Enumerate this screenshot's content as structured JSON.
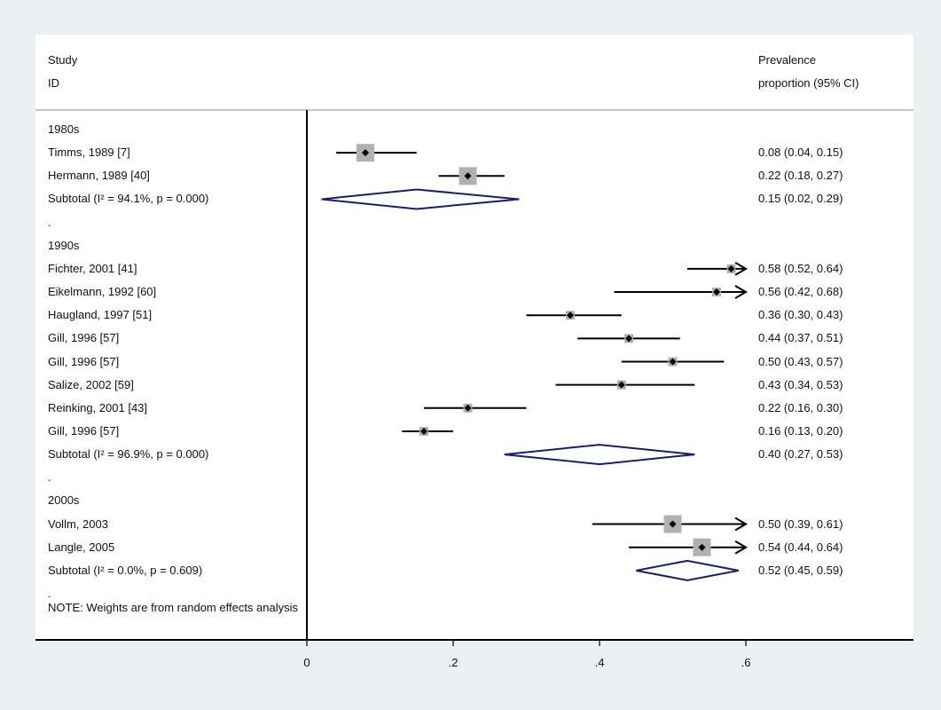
{
  "header": {
    "left_line1": "Study",
    "left_line2": "ID",
    "right_line1": "Prevalence",
    "right_line2": "proportion (95% CI)"
  },
  "note": "NOTE: Weights are from random effects analysis",
  "colors": {
    "background": "#e9f0ef",
    "panel": "#ffffff",
    "diamond": "#1a1f6b",
    "weight_box": "#b0b0b0",
    "separator": "#c8c8c8"
  },
  "chart_data": {
    "type": "forest",
    "xlim": [
      0,
      0.6
    ],
    "xticks": [
      0,
      0.2,
      0.4,
      0.6
    ],
    "xtick_labels": [
      "0",
      ".2",
      ".4",
      ".6"
    ],
    "rows": [
      {
        "kind": "group",
        "label": "1980s"
      },
      {
        "kind": "study",
        "label": "Timms, 1989 [7]",
        "est": 0.08,
        "lo": 0.04,
        "hi": 0.15,
        "text": "0.08 (0.04, 0.15)",
        "weight": 1.0
      },
      {
        "kind": "study",
        "label": "Hermann, 1989 [40]",
        "est": 0.22,
        "lo": 0.18,
        "hi": 0.27,
        "text": "0.22 (0.18, 0.27)",
        "weight": 1.0
      },
      {
        "kind": "subtotal",
        "label": "Subtotal",
        "stat": "(I² = 94.1%, p = 0.000)",
        "est": 0.15,
        "lo": 0.02,
        "hi": 0.29,
        "text": "0.15 (0.02, 0.29)"
      },
      {
        "kind": "spacer",
        "label": "."
      },
      {
        "kind": "group",
        "label": "1990s"
      },
      {
        "kind": "study",
        "label": "Fichter, 2001 [41]",
        "est": 0.58,
        "lo": 0.52,
        "hi": 0.64,
        "text": "0.58 (0.52, 0.64)",
        "weight": 0.4
      },
      {
        "kind": "study",
        "label": "Eikelmann, 1992 [60]",
        "est": 0.56,
        "lo": 0.42,
        "hi": 0.68,
        "text": "0.56 (0.42, 0.68)",
        "weight": 0.4
      },
      {
        "kind": "study",
        "label": "Haugland, 1997 [51]",
        "est": 0.36,
        "lo": 0.3,
        "hi": 0.43,
        "text": "0.36 (0.30, 0.43)",
        "weight": 0.4
      },
      {
        "kind": "study",
        "label": "Gill, 1996 [57]",
        "est": 0.44,
        "lo": 0.37,
        "hi": 0.51,
        "text": "0.44 (0.37, 0.51)",
        "weight": 0.4
      },
      {
        "kind": "study",
        "label": "Gill, 1996 [57]",
        "est": 0.5,
        "lo": 0.43,
        "hi": 0.57,
        "text": "0.50 (0.43, 0.57)",
        "weight": 0.4
      },
      {
        "kind": "study",
        "label": "Salize, 2002 [59]",
        "est": 0.43,
        "lo": 0.34,
        "hi": 0.53,
        "text": "0.43 (0.34, 0.53)",
        "weight": 0.4
      },
      {
        "kind": "study",
        "label": "Reinking, 2001 [43]",
        "est": 0.22,
        "lo": 0.16,
        "hi": 0.3,
        "text": "0.22 (0.16, 0.30)",
        "weight": 0.4
      },
      {
        "kind": "study",
        "label": "Gill, 1996 [57]",
        "est": 0.16,
        "lo": 0.13,
        "hi": 0.2,
        "text": "0.16 (0.13, 0.20)",
        "weight": 0.4
      },
      {
        "kind": "subtotal",
        "label": "Subtotal",
        "stat": "(I² = 96.9%, p = 0.000)",
        "est": 0.4,
        "lo": 0.27,
        "hi": 0.53,
        "text": "0.40 (0.27, 0.53)"
      },
      {
        "kind": "spacer",
        "label": "."
      },
      {
        "kind": "group",
        "label": "2000s"
      },
      {
        "kind": "study",
        "label": "Vollm, 2003",
        "est": 0.5,
        "lo": 0.39,
        "hi": 0.61,
        "text": "0.50 (0.39, 0.61)",
        "weight": 1.0
      },
      {
        "kind": "study",
        "label": "Langle, 2005",
        "est": 0.54,
        "lo": 0.44,
        "hi": 0.64,
        "text": "0.54 (0.44, 0.64)",
        "weight": 1.0
      },
      {
        "kind": "subtotal",
        "label": "Subtotal",
        "stat": "(I² = 0.0%, p = 0.609)",
        "est": 0.52,
        "lo": 0.45,
        "hi": 0.59,
        "text": "0.52 (0.45, 0.59)"
      },
      {
        "kind": "spacer",
        "label": "."
      }
    ]
  }
}
